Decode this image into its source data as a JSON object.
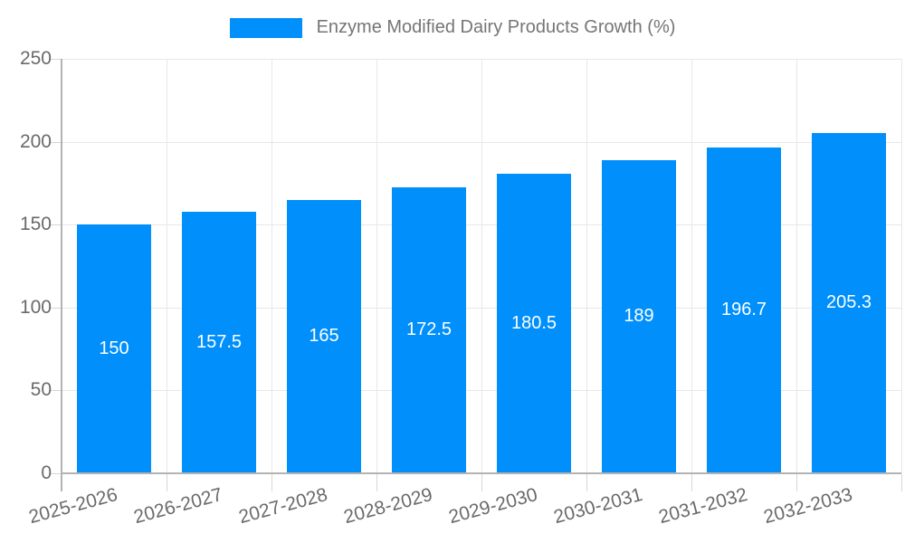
{
  "legend": {
    "label": "Enzyme Modified Dairy Products Growth (%)"
  },
  "chart_data": {
    "type": "bar",
    "title": "Enzyme Modified Dairy Products Growth (%)",
    "series": [
      {
        "name": "Enzyme Modified Dairy Products Growth (%)",
        "values": [
          150,
          157.5,
          165,
          172.5,
          180.5,
          189,
          196.7,
          205.3
        ]
      }
    ],
    "categories": [
      "2025-2026",
      "2026-2027",
      "2027-2028",
      "2028-2029",
      "2029-2030",
      "2030-2031",
      "2031-2032",
      "2032-2033"
    ],
    "values": [
      150,
      157.5,
      165,
      172.5,
      180.5,
      189,
      196.7,
      205.3
    ],
    "value_labels": [
      "150",
      "157.5",
      "165",
      "172.5",
      "180.5",
      "189",
      "196.7",
      "205.3"
    ],
    "xlabel": "",
    "ylabel": "",
    "ylim": [
      0,
      250
    ],
    "ytick_step": 50,
    "yticks": [
      "0",
      "50",
      "100",
      "150",
      "200",
      "250"
    ],
    "grid": true,
    "legend_position": "top-center",
    "x_label_rotation_deg": -15,
    "colors": {
      "bar": "#008FFB",
      "value_label": "#FFFFFF",
      "axis_text": "#6A6A6A",
      "legend_text": "#757575",
      "grid": "#E7E7E7",
      "axis_line": "#B3B3B3",
      "tick": "#D6D6D6",
      "background": "#FFFFFF"
    }
  }
}
